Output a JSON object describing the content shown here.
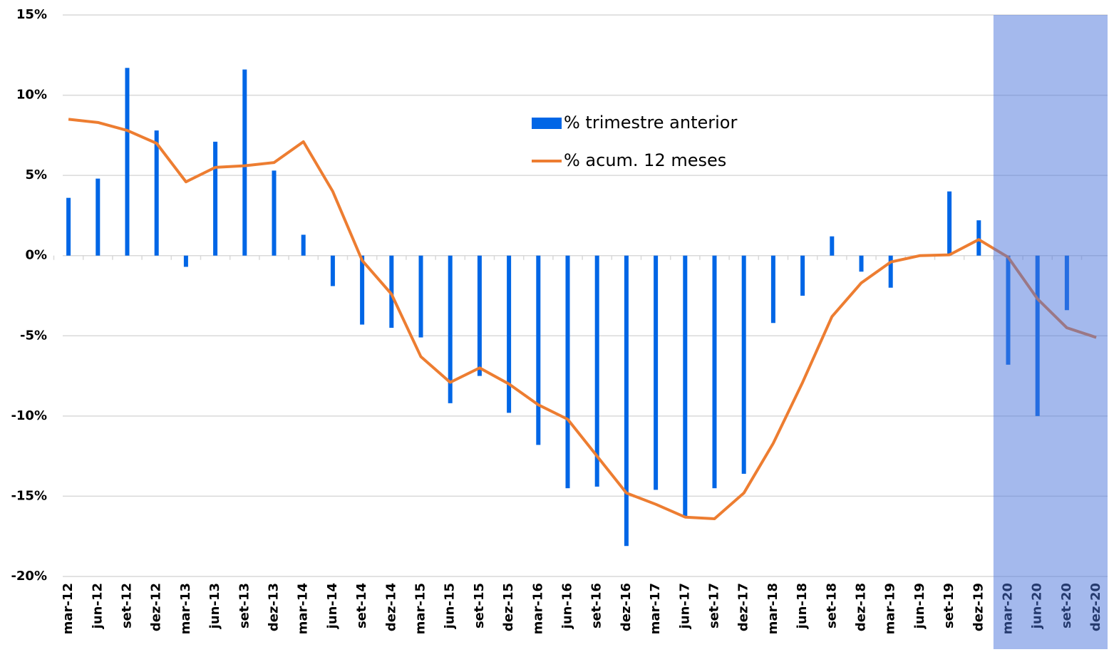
{
  "chart_data": {
    "type": "bar_line",
    "categories": [
      "mar-12",
      "jun-12",
      "set-12",
      "dez-12",
      "mar-13",
      "jun-13",
      "set-13",
      "dez-13",
      "mar-14",
      "jun-14",
      "set-14",
      "dez-14",
      "mar-15",
      "jun-15",
      "set-15",
      "dez-15",
      "mar-16",
      "jun-16",
      "set-16",
      "dez-16",
      "mar-17",
      "jun-17",
      "set-17",
      "dez-17",
      "mar-18",
      "jun-18",
      "set-18",
      "dez-18",
      "mar-19",
      "jun-19",
      "set-19",
      "dez-19",
      "mar-20",
      "jun-20",
      "set-20",
      "dez-20"
    ],
    "series": [
      {
        "name": "% trimestre anterior",
        "type": "bar",
        "color": "#0066e6",
        "values": [
          3.6,
          4.8,
          11.7,
          7.8,
          -0.7,
          7.1,
          11.6,
          5.3,
          1.3,
          -1.9,
          -4.3,
          -4.5,
          -5.1,
          -9.2,
          -7.5,
          -9.8,
          -11.8,
          -14.5,
          -14.4,
          -18.1,
          -14.6,
          -16.3,
          -14.5,
          -13.6,
          -4.2,
          -2.5,
          1.2,
          -1.0,
          -2.0,
          0,
          4.0,
          2.2,
          -6.8,
          -10.0,
          -3.4,
          null
        ]
      },
      {
        "name": "% acum. 12 meses",
        "type": "line",
        "color": "#ed7d31",
        "values": [
          8.5,
          8.3,
          7.8,
          7.0,
          4.6,
          5.5,
          5.6,
          5.8,
          7.1,
          4.0,
          -0.3,
          -2.4,
          -6.3,
          -7.9,
          -7.0,
          -8.0,
          -9.3,
          -10.2,
          -12.5,
          -14.8,
          -15.5,
          -16.3,
          -16.4,
          -14.8,
          -11.7,
          -7.9,
          -3.8,
          -1.7,
          -0.4,
          0.0,
          0.05,
          1.0,
          -0.1,
          -2.7,
          -4.5,
          -5.1
        ]
      }
    ],
    "ylim": [
      -20,
      15
    ],
    "yticks": [
      {
        "value": -20,
        "label": "-20%"
      },
      {
        "value": -15,
        "label": "-15%"
      },
      {
        "value": -10,
        "label": "-10%"
      },
      {
        "value": -5,
        "label": "-5%"
      },
      {
        "value": 0,
        "label": "0%"
      },
      {
        "value": 5,
        "label": "5%"
      },
      {
        "value": 10,
        "label": "10%"
      },
      {
        "value": 15,
        "label": "15%"
      }
    ],
    "grid": true,
    "highlight_start": "mar-20",
    "highlight_color": "#4973dc"
  }
}
